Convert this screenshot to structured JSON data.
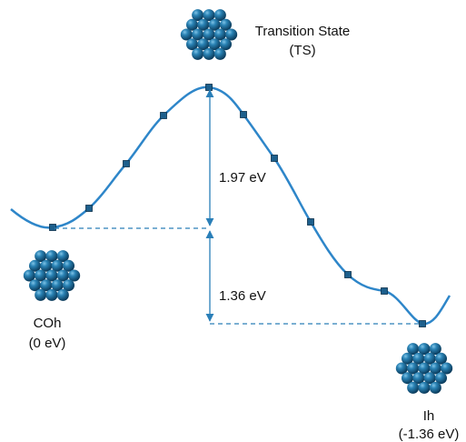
{
  "title": {
    "line1": "Transition State",
    "line2": "(TS)"
  },
  "barriers": {
    "upper": "1.97 eV",
    "lower": "1.36 eV"
  },
  "start": {
    "name": "COh",
    "energy": "(0 eV)"
  },
  "end": {
    "name": "Ih",
    "energy": "(-1.36 eV)"
  }
}
